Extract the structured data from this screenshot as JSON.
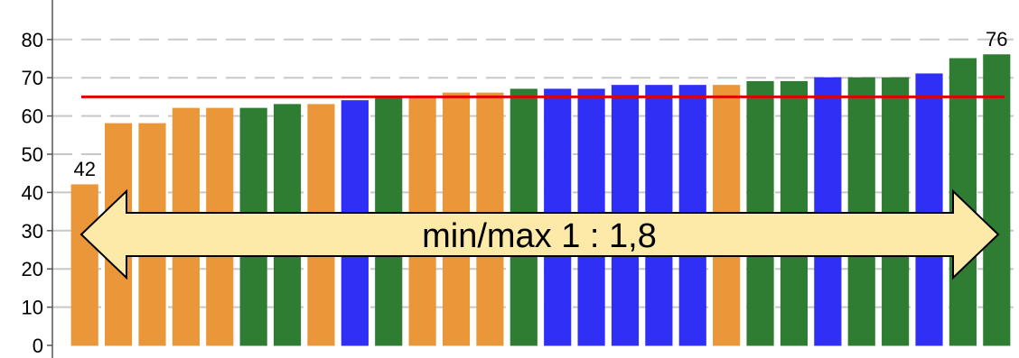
{
  "chart_data": {
    "type": "bar",
    "title": "",
    "xlabel": "",
    "ylabel": "",
    "ylim": [
      0,
      86
    ],
    "yticks": [
      0,
      10,
      20,
      30,
      40,
      50,
      60,
      70,
      80
    ],
    "grid": "horizontal dashed",
    "values": [
      42,
      58,
      58,
      62,
      62,
      62,
      63,
      63,
      64,
      65,
      65,
      66,
      66,
      67,
      67,
      67,
      68,
      68,
      68,
      68,
      69,
      69,
      70,
      70,
      70,
      71,
      75,
      76
    ],
    "colors": [
      "#e99738",
      "#e99738",
      "#e99738",
      "#e99738",
      "#e99738",
      "#2e7d32",
      "#2e7d32",
      "#e99738",
      "#2f2ff5",
      "#2e7d32",
      "#e99738",
      "#e99738",
      "#e99738",
      "#2e7d32",
      "#2f2ff5",
      "#2f2ff5",
      "#2f2ff5",
      "#2f2ff5",
      "#2f2ff5",
      "#e99738",
      "#2e7d32",
      "#2e7d32",
      "#2f2ff5",
      "#2e7d32",
      "#2e7d32",
      "#2f2ff5",
      "#2e7d32",
      "#2e7d32"
    ],
    "data_labels": [
      {
        "index": 0,
        "text": "42"
      },
      {
        "index": 27,
        "text": "76"
      }
    ],
    "reference_line": {
      "value": 65,
      "color": "#e00000"
    },
    "annotation": {
      "text": "min/max 1 : 1,8",
      "fill": "#fde9a8"
    }
  }
}
